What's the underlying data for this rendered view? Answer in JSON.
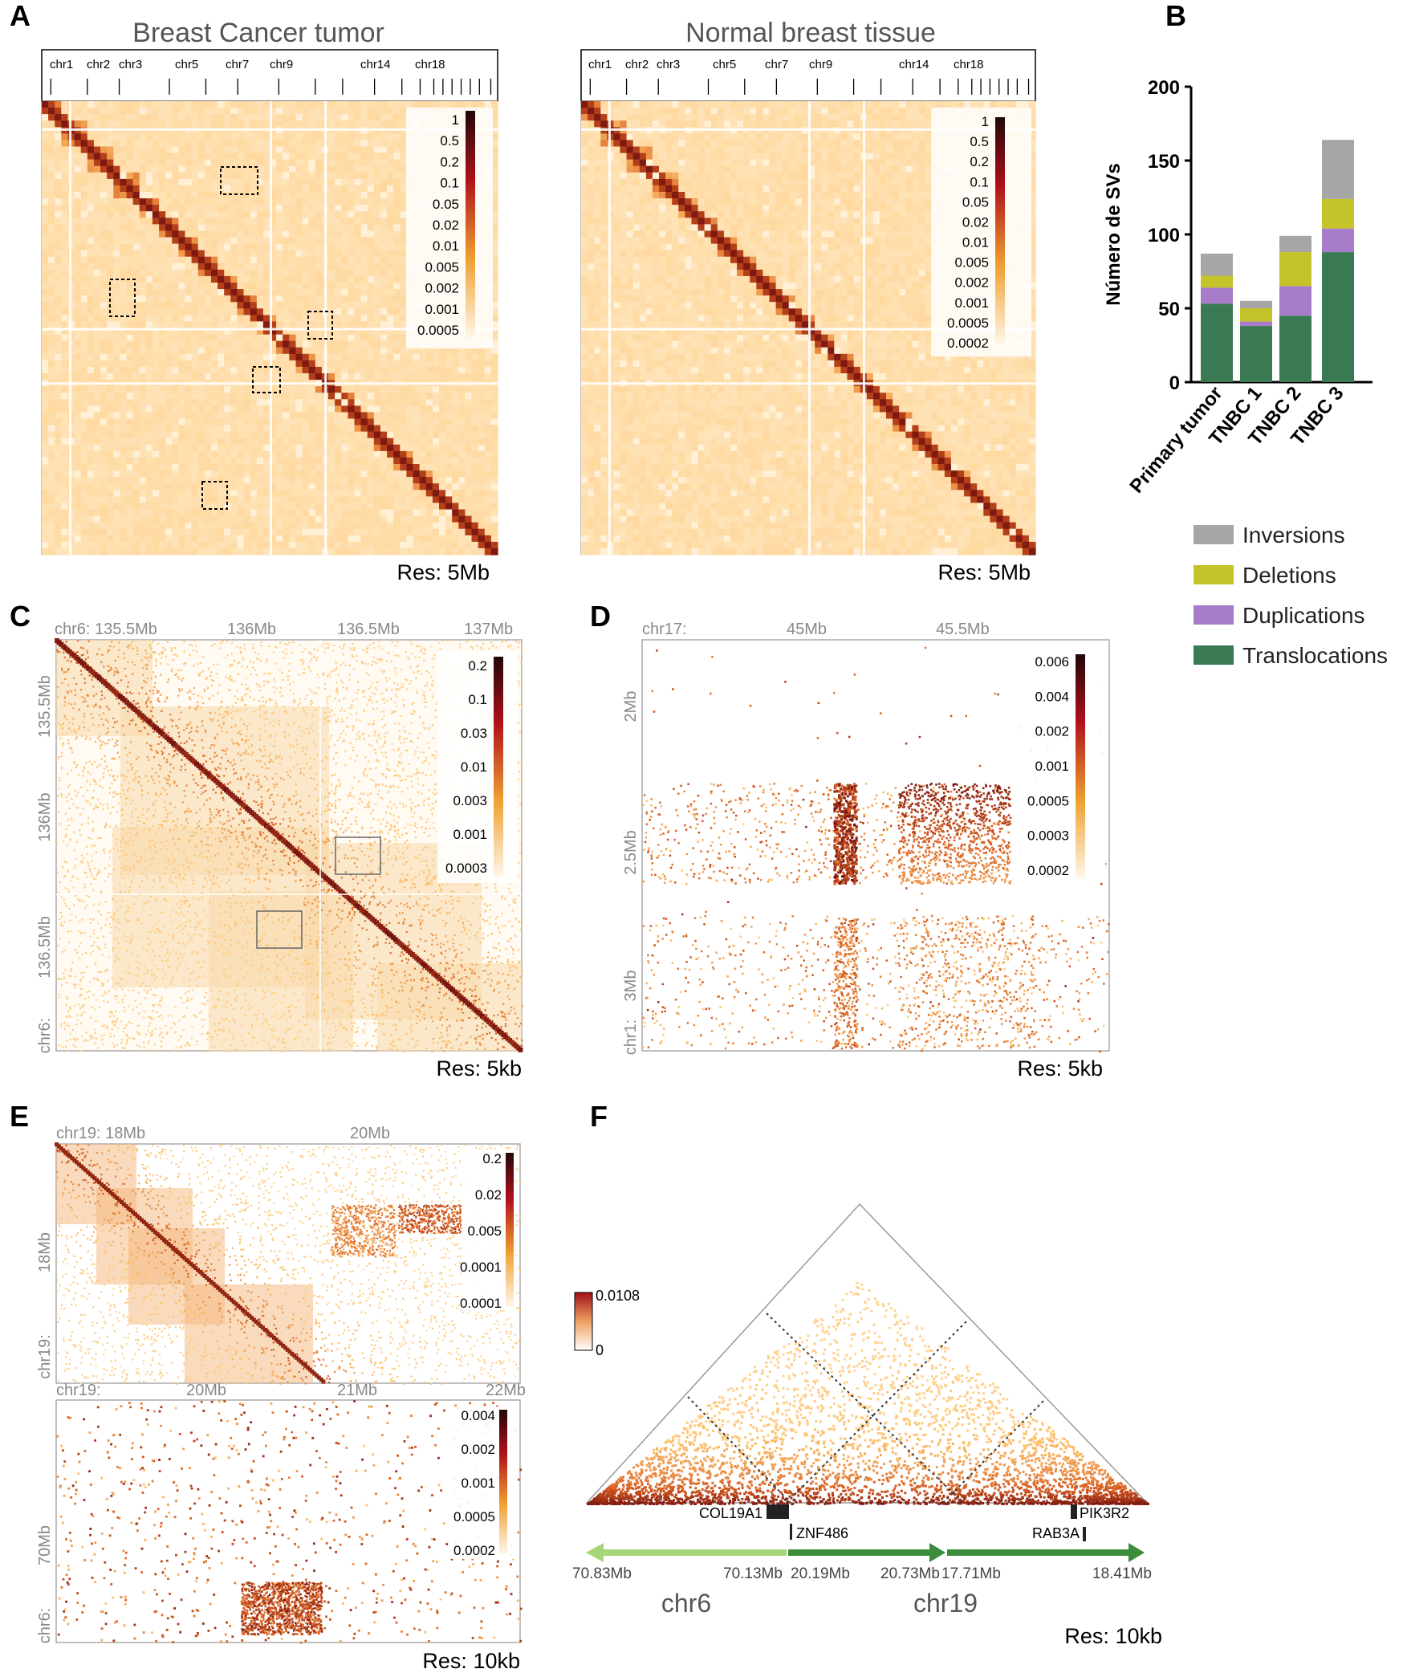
{
  "panel_labels": [
    "A",
    "B",
    "C",
    "D",
    "E",
    "F"
  ],
  "colors": {
    "heat_low": "#fff4e0",
    "heat_mid": "#f0a030",
    "heat_high": "#b0101a",
    "heat_max": "#200808",
    "inversions": "#a6a6a6",
    "deletions": "#c4c42a",
    "duplications": "#a77cc8",
    "translocations": "#3a7a52",
    "arrow_light": "#a6d67a",
    "arrow_dark": "#3c8c3c"
  },
  "panel_a": {
    "maps": [
      {
        "title": "Breast Cancer tumor",
        "res": "Res: 5Mb",
        "chroms": [
          "chr1",
          "chr2",
          "chr3",
          "chr5",
          "chr7",
          "chr9",
          "chr14",
          "chr18"
        ],
        "colorbar": [
          "1",
          "0.5",
          "0.2",
          "0.1",
          "0.05",
          "0.02",
          "0.01",
          "0.005",
          "0.002",
          "0.001",
          "0.0005"
        ]
      },
      {
        "title": "Normal breast tissue",
        "res": "Res: 5Mb",
        "chroms": [
          "chr1",
          "chr2",
          "chr3",
          "chr5",
          "chr7",
          "chr9",
          "chr14",
          "chr18"
        ],
        "colorbar": [
          "1",
          "0.5",
          "0.2",
          "0.1",
          "0.05",
          "0.02",
          "0.01",
          "0.005",
          "0.002",
          "0.001",
          "0.0005",
          "0.0002"
        ]
      }
    ]
  },
  "chart_data": [
    {
      "type": "bar",
      "stacked": true,
      "categories": [
        "Primary tumor",
        "TNBC 1",
        "TNBC 2",
        "TNBC 3"
      ],
      "series": [
        {
          "name": "Translocations",
          "values": [
            53,
            38,
            45,
            88
          ]
        },
        {
          "name": "Duplications",
          "values": [
            11,
            3,
            20,
            16
          ]
        },
        {
          "name": "Deletions",
          "values": [
            8,
            9,
            23,
            20
          ]
        },
        {
          "name": "Inversions",
          "values": [
            15,
            5,
            11,
            40
          ]
        }
      ],
      "ylabel": "Número de SVs",
      "ylim": [
        0,
        200
      ],
      "yticks": [
        "0",
        "50",
        "100",
        "150",
        "200"
      ],
      "legend": [
        "Inversions",
        "Deletions",
        "Duplications",
        "Translocations"
      ],
      "legend_position": "bottom"
    },
    {
      "type": "heatmap",
      "panel": "C",
      "x_ticks": [
        "chr6: 135.5Mb",
        "136Mb",
        "136.5Mb",
        "137Mb"
      ],
      "y_ticks": [
        "135.5Mb",
        "136Mb",
        "136.5Mb",
        "chr6:"
      ],
      "colorbar": [
        "0.2",
        "0.1",
        "0.03",
        "0.01",
        "0.003",
        "0.001",
        "0.0003"
      ],
      "res": "Res: 5kb"
    },
    {
      "type": "heatmap",
      "panel": "D",
      "x_ticks": [
        "chr17:",
        "45Mb",
        "45.5Mb"
      ],
      "y_ticks": [
        "2Mb",
        "2.5Mb",
        "3Mb",
        "chr1:"
      ],
      "colorbar": [
        "0.006",
        "0.004",
        "0.002",
        "0.001",
        "0.0005",
        "0.0003",
        "0.0002"
      ],
      "res": "Res: 5kb"
    },
    {
      "type": "heatmap",
      "panel": "E_top",
      "x_ticks": [
        "chr19: 18Mb",
        "20Mb"
      ],
      "y_ticks": [
        "18Mb",
        "chr19:"
      ],
      "colorbar": [
        "0.2",
        "0.02",
        "0.005",
        "0.0001",
        "0.0001"
      ]
    },
    {
      "type": "heatmap",
      "panel": "E_bottom",
      "x_ticks": [
        "chr19:",
        "20Mb",
        "21Mb",
        "22Mb"
      ],
      "y_ticks": [
        "70Mb",
        "chr6:"
      ],
      "colorbar": [
        "0.004",
        "0.002",
        "0.001",
        "0.0005",
        "0.0002"
      ],
      "res": "Res: 10kb"
    },
    {
      "type": "heatmap",
      "panel": "F",
      "colorbar": [
        "0.0108",
        "0"
      ],
      "genes": [
        "COL19A1",
        "ZNF486",
        "PIK3R2",
        "RAB3A"
      ],
      "coords": [
        "70.83Mb",
        "70.13Mb",
        "20.19Mb",
        "20.73Mb",
        "17.71Mb",
        "18.41Mb"
      ],
      "chroms": [
        "chr6",
        "chr19"
      ],
      "res": "Res: 10kb"
    }
  ]
}
